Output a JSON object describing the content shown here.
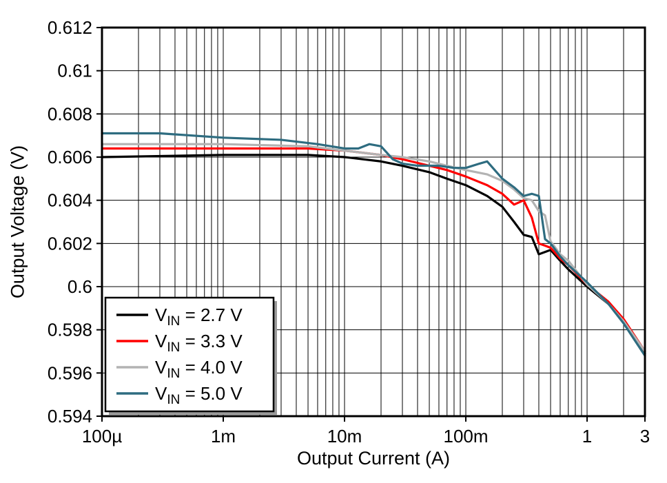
{
  "figure": {
    "background": "#ffffff"
  },
  "chart_data": {
    "type": "line",
    "title": "",
    "xlabel": "Output Current (A)",
    "ylabel": "Output Voltage (V)",
    "x_scale": "log",
    "xlim": [
      0.0001,
      3
    ],
    "ylim": [
      0.594,
      0.612
    ],
    "x_ticks": [
      {
        "value": 0.0001,
        "label": "100µ"
      },
      {
        "value": 0.001,
        "label": "1m"
      },
      {
        "value": 0.01,
        "label": "10m"
      },
      {
        "value": 0.1,
        "label": "100m"
      },
      {
        "value": 1,
        "label": "1"
      },
      {
        "value": 3,
        "label": "3"
      }
    ],
    "y_ticks": [
      {
        "value": 0.594,
        "label": "0.594"
      },
      {
        "value": 0.596,
        "label": "0.596"
      },
      {
        "value": 0.598,
        "label": "0.598"
      },
      {
        "value": 0.6,
        "label": "0.6"
      },
      {
        "value": 0.602,
        "label": "0.602"
      },
      {
        "value": 0.604,
        "label": "0.604"
      },
      {
        "value": 0.606,
        "label": "0.606"
      },
      {
        "value": 0.608,
        "label": "0.608"
      },
      {
        "value": 0.61,
        "label": "0.61"
      },
      {
        "value": 0.612,
        "label": "0.612"
      }
    ],
    "grid": {
      "vertical": "log-minor",
      "horizontal": "major",
      "color": "#000000"
    },
    "legend": {
      "position": "bottom-left",
      "entries": [
        {
          "var": "V",
          "sub": "IN",
          "rest": " = 2.7 V",
          "color": "#000000"
        },
        {
          "var": "V",
          "sub": "IN",
          "rest": " = 3.3 V",
          "color": "#ff0000"
        },
        {
          "var": "V",
          "sub": "IN",
          "rest": " = 4.0 V",
          "color": "#b3b3b3"
        },
        {
          "var": "V",
          "sub": "IN",
          "rest": " = 5.0 V",
          "color": "#2e6c80"
        }
      ]
    },
    "series": [
      {
        "name": "VIN = 2.7 V",
        "color": "#000000",
        "x": [
          0.0001,
          0.001,
          0.005,
          0.01,
          0.02,
          0.03,
          0.05,
          0.07,
          0.1,
          0.15,
          0.2,
          0.25,
          0.3,
          0.35,
          0.4,
          0.5,
          0.6,
          0.7,
          1,
          1.5,
          2,
          3
        ],
        "y": [
          0.606,
          0.6061,
          0.6061,
          0.606,
          0.6058,
          0.6056,
          0.6053,
          0.605,
          0.6047,
          0.6042,
          0.6037,
          0.603,
          0.6024,
          0.6023,
          0.6015,
          0.6017,
          0.6012,
          0.6008,
          0.6,
          0.5992,
          0.5984,
          0.5969
        ]
      },
      {
        "name": "VIN = 3.3 V",
        "color": "#ff0000",
        "x": [
          0.0001,
          0.001,
          0.005,
          0.01,
          0.02,
          0.03,
          0.05,
          0.07,
          0.1,
          0.15,
          0.2,
          0.25,
          0.3,
          0.35,
          0.4,
          0.45,
          0.5,
          0.6,
          0.7,
          1,
          1.5,
          2,
          3
        ],
        "y": [
          0.6064,
          0.6064,
          0.6064,
          0.6063,
          0.6061,
          0.6059,
          0.6056,
          0.6054,
          0.6051,
          0.6047,
          0.6043,
          0.6038,
          0.604,
          0.6032,
          0.602,
          0.6019,
          0.6018,
          0.6013,
          0.601,
          0.6001,
          0.5993,
          0.5985,
          0.597
        ]
      },
      {
        "name": "VIN = 4.0 V",
        "color": "#b3b3b3",
        "x": [
          0.0001,
          0.001,
          0.005,
          0.01,
          0.02,
          0.03,
          0.05,
          0.07,
          0.1,
          0.15,
          0.2,
          0.25,
          0.3,
          0.35,
          0.4,
          0.45,
          0.5,
          0.6,
          0.7,
          1,
          1.5,
          2,
          3
        ],
        "y": [
          0.6066,
          0.6066,
          0.6065,
          0.6063,
          0.6061,
          0.606,
          0.6058,
          0.6056,
          0.6054,
          0.6052,
          0.6049,
          0.6045,
          0.6041,
          0.604,
          0.6035,
          0.6033,
          0.6021,
          0.6015,
          0.6012,
          0.6001,
          0.5992,
          0.5984,
          0.597
        ]
      },
      {
        "name": "VIN = 5.0 V",
        "color": "#2e6c80",
        "x": [
          0.0001,
          0.0003,
          0.001,
          0.003,
          0.006,
          0.01,
          0.013,
          0.016,
          0.02,
          0.025,
          0.03,
          0.04,
          0.06,
          0.08,
          0.1,
          0.13,
          0.15,
          0.2,
          0.25,
          0.3,
          0.35,
          0.4,
          0.45,
          0.5,
          0.6,
          0.7,
          1,
          1.5,
          2,
          3
        ],
        "y": [
          0.6071,
          0.6071,
          0.6069,
          0.6068,
          0.6066,
          0.6064,
          0.6064,
          0.6066,
          0.6065,
          0.6059,
          0.6057,
          0.6056,
          0.6056,
          0.6055,
          0.6055,
          0.6057,
          0.6058,
          0.605,
          0.6046,
          0.6042,
          0.6043,
          0.6042,
          0.6022,
          0.602,
          0.6014,
          0.601,
          0.6002,
          0.5992,
          0.5983,
          0.5968
        ]
      }
    ]
  }
}
